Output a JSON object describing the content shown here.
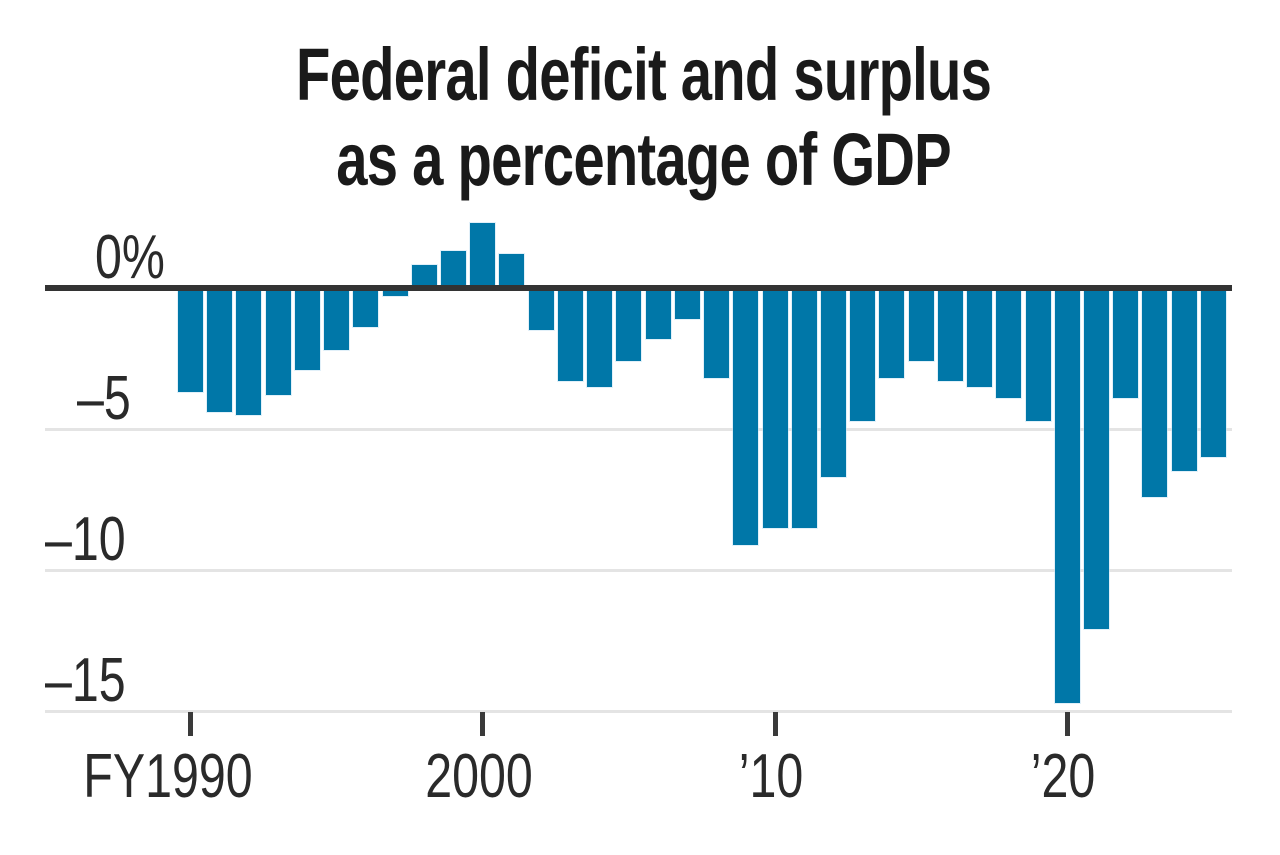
{
  "title": {
    "line1": "Federal deficit and surplus",
    "line2": "as a percentage of GDP"
  },
  "chart_data": {
    "type": "bar",
    "title": "Federal deficit and surplus as a percentage of GDP",
    "unit": "percent of GDP",
    "x": [
      1990,
      1991,
      1992,
      1993,
      1994,
      1995,
      1996,
      1997,
      1998,
      1999,
      2000,
      2001,
      2002,
      2003,
      2004,
      2005,
      2006,
      2007,
      2008,
      2009,
      2010,
      2011,
      2012,
      2013,
      2014,
      2015,
      2016,
      2017,
      2018,
      2019,
      2020,
      2021,
      2022,
      2023,
      2024,
      2025
    ],
    "values": [
      -3.7,
      -4.4,
      -4.5,
      -3.8,
      -2.9,
      -2.2,
      -1.4,
      -0.3,
      0.8,
      1.3,
      2.3,
      1.2,
      -1.5,
      -3.3,
      -3.5,
      -2.6,
      -1.8,
      -1.1,
      -3.2,
      -9.1,
      -8.5,
      -8.5,
      -6.7,
      -4.7,
      -3.2,
      -2.6,
      -3.3,
      -3.5,
      -3.9,
      -4.7,
      -14.7,
      -12.1,
      -3.9,
      -7.4,
      -6.5,
      -6.0
    ],
    "xlabel": "",
    "ylabel": "",
    "ylim": [
      -16.3,
      3.2
    ],
    "y_ticks": [
      0,
      -5,
      -10,
      -15
    ],
    "y_tick_labels": [
      "0%",
      "–5",
      "–10",
      "–15"
    ],
    "x_ticks": [
      1990,
      2000,
      2010,
      2020
    ],
    "x_tick_labels": [
      "FY1990",
      "2000",
      "’10",
      "’20"
    ],
    "grid": "horizontal",
    "legend": "none",
    "bar_color": "#0077a8"
  },
  "colors": {
    "background": "#ffffff",
    "bar": "#0077a8",
    "zero_line": "#333333",
    "gridline": "#e4e4e4",
    "title_text": "#1a1a1a",
    "axis_text": "#2a2a2a"
  }
}
